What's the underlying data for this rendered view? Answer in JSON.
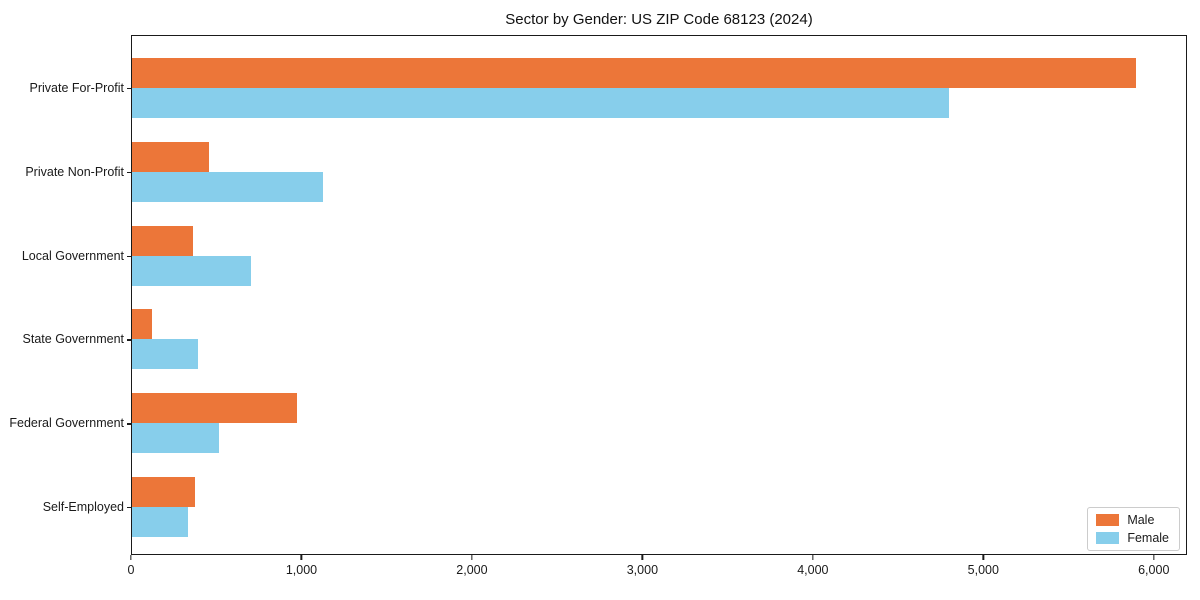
{
  "chart_data": {
    "type": "bar",
    "orientation": "horizontal",
    "title": "Sector by Gender: US ZIP Code 68123 (2024)",
    "categories": [
      "Private For-Profit",
      "Private Non-Profit",
      "Local Government",
      "State Government",
      "Federal Government",
      "Self-Employed"
    ],
    "series": [
      {
        "name": "Male",
        "color": "#EC7639",
        "values": [
          5900,
          450,
          360,
          120,
          970,
          370
        ]
      },
      {
        "name": "Female",
        "color": "#87CEEB",
        "values": [
          4800,
          1120,
          700,
          390,
          510,
          330
        ]
      }
    ],
    "xlabel": "",
    "ylabel": "",
    "xlim": [
      0,
      6195
    ],
    "xticks": [
      0,
      1000,
      2000,
      3000,
      4000,
      5000,
      6000
    ],
    "xtick_labels": [
      "0",
      "1,000",
      "2,000",
      "3,000",
      "4,000",
      "5,000",
      "6,000"
    ],
    "grid": false,
    "legend": {
      "position": "lower-right",
      "entries": [
        {
          "label": "Male",
          "color": "#EC7639"
        },
        {
          "label": "Female",
          "color": "#87CEEB"
        }
      ]
    },
    "colors": {
      "male": "#EC7639",
      "female": "#87CEEB",
      "axis": "#1a1a1a",
      "legend_border": "#cccccc",
      "background": "#ffffff"
    }
  }
}
